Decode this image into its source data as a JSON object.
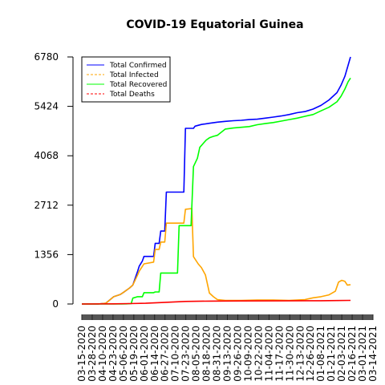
{
  "chart_data": {
    "type": "line",
    "title": "COVID-19 Equatorial Guinea",
    "xlabel": "",
    "ylabel": "",
    "ylim": [
      0,
      6780
    ],
    "yticks": [
      0,
      1356,
      2712,
      4068,
      5424,
      6780
    ],
    "x_ticks": [
      "03-15-2020",
      "03-28-2020",
      "04-10-2020",
      "04-23-2020",
      "05-06-2020",
      "05-19-2020",
      "06-01-2020",
      "06-14-2020",
      "06-27-2020",
      "07-10-2020",
      "07-23-2020",
      "08-05-2020",
      "08-18-2020",
      "08-31-2020",
      "09-13-2020",
      "09-26-2020",
      "10-09-2020",
      "10-22-2020",
      "11-04-2020",
      "11-17-2020",
      "11-30-2020",
      "12-13-2020",
      "12-26-2020",
      "01-08-2021",
      "01-21-2021",
      "02-03-2021",
      "02-16-2021",
      "03-01-2021",
      "03-14-2021"
    ],
    "legend_position": "top-left",
    "series": [
      {
        "name": "Total Confirmed",
        "color": "#0000ff",
        "dash": "solid",
        "points": [
          [
            0,
            0
          ],
          [
            20,
            1
          ],
          [
            30,
            20
          ],
          [
            40,
            200
          ],
          [
            48,
            258
          ],
          [
            52,
            315
          ],
          [
            60,
            440
          ],
          [
            64,
            520
          ],
          [
            70,
            900
          ],
          [
            72,
            1040
          ],
          [
            76,
            1180
          ],
          [
            78,
            1306
          ],
          [
            90,
            1306
          ],
          [
            92,
            1664
          ],
          [
            97,
            1664
          ],
          [
            99,
            2001
          ],
          [
            104,
            2001
          ],
          [
            106,
            3071
          ],
          [
            128,
            3071
          ],
          [
            130,
            4821
          ],
          [
            140,
            4821
          ],
          [
            142,
            4880
          ],
          [
            150,
            4927
          ],
          [
            160,
            4960
          ],
          [
            170,
            4990
          ],
          [
            180,
            5012
          ],
          [
            190,
            5030
          ],
          [
            200,
            5040
          ],
          [
            210,
            5060
          ],
          [
            220,
            5072
          ],
          [
            230,
            5100
          ],
          [
            240,
            5130
          ],
          [
            250,
            5160
          ],
          [
            260,
            5200
          ],
          [
            270,
            5250
          ],
          [
            280,
            5280
          ],
          [
            290,
            5350
          ],
          [
            300,
            5450
          ],
          [
            310,
            5600
          ],
          [
            320,
            5800
          ],
          [
            325,
            6000
          ],
          [
            330,
            6250
          ],
          [
            334,
            6550
          ],
          [
            337,
            6780
          ]
        ]
      },
      {
        "name": "Total Infected",
        "color": "#ffa500",
        "dash": "dashed",
        "points": [
          [
            0,
            0
          ],
          [
            20,
            1
          ],
          [
            30,
            20
          ],
          [
            40,
            200
          ],
          [
            48,
            258
          ],
          [
            52,
            315
          ],
          [
            60,
            440
          ],
          [
            64,
            520
          ],
          [
            70,
            800
          ],
          [
            72,
            900
          ],
          [
            78,
            1100
          ],
          [
            90,
            1150
          ],
          [
            92,
            1500
          ],
          [
            97,
            1500
          ],
          [
            99,
            1700
          ],
          [
            104,
            1700
          ],
          [
            106,
            2220
          ],
          [
            128,
            2220
          ],
          [
            130,
            2600
          ],
          [
            138,
            2620
          ],
          [
            140,
            1300
          ],
          [
            146,
            1100
          ],
          [
            150,
            1000
          ],
          [
            155,
            800
          ],
          [
            158,
            500
          ],
          [
            160,
            300
          ],
          [
            165,
            200
          ],
          [
            170,
            120
          ],
          [
            180,
            100
          ],
          [
            200,
            100
          ],
          [
            220,
            110
          ],
          [
            240,
            110
          ],
          [
            260,
            100
          ],
          [
            280,
            120
          ],
          [
            290,
            170
          ],
          [
            300,
            200
          ],
          [
            310,
            250
          ],
          [
            318,
            350
          ],
          [
            322,
            600
          ],
          [
            326,
            650
          ],
          [
            330,
            620
          ],
          [
            333,
            520
          ],
          [
            337,
            530
          ]
        ]
      },
      {
        "name": "Total Recovered",
        "color": "#00ff00",
        "dash": "solid",
        "points": [
          [
            0,
            0
          ],
          [
            48,
            0
          ],
          [
            50,
            0
          ],
          [
            56,
            5
          ],
          [
            62,
            10
          ],
          [
            64,
            160
          ],
          [
            70,
            200
          ],
          [
            76,
            200
          ],
          [
            78,
            310
          ],
          [
            90,
            310
          ],
          [
            92,
            330
          ],
          [
            97,
            330
          ],
          [
            99,
            850
          ],
          [
            104,
            850
          ],
          [
            120,
            850
          ],
          [
            122,
            2150
          ],
          [
            137,
            2150
          ],
          [
            140,
            3770
          ],
          [
            145,
            4000
          ],
          [
            148,
            4300
          ],
          [
            152,
            4400
          ],
          [
            156,
            4500
          ],
          [
            160,
            4560
          ],
          [
            165,
            4600
          ],
          [
            170,
            4630
          ],
          [
            180,
            4800
          ],
          [
            190,
            4830
          ],
          [
            200,
            4850
          ],
          [
            210,
            4870
          ],
          [
            220,
            4920
          ],
          [
            230,
            4950
          ],
          [
            240,
            4980
          ],
          [
            250,
            5020
          ],
          [
            260,
            5060
          ],
          [
            270,
            5100
          ],
          [
            280,
            5150
          ],
          [
            290,
            5200
          ],
          [
            300,
            5300
          ],
          [
            310,
            5400
          ],
          [
            320,
            5550
          ],
          [
            325,
            5700
          ],
          [
            330,
            5900
          ],
          [
            334,
            6100
          ],
          [
            337,
            6200
          ]
        ]
      },
      {
        "name": "Total Deaths",
        "color": "#ff0000",
        "dash": "dashed",
        "points": [
          [
            0,
            0
          ],
          [
            40,
            5
          ],
          [
            60,
            10
          ],
          [
            80,
            20
          ],
          [
            100,
            40
          ],
          [
            130,
            70
          ],
          [
            160,
            80
          ],
          [
            200,
            83
          ],
          [
            250,
            86
          ],
          [
            300,
            90
          ],
          [
            320,
            95
          ],
          [
            337,
            100
          ]
        ]
      }
    ]
  }
}
